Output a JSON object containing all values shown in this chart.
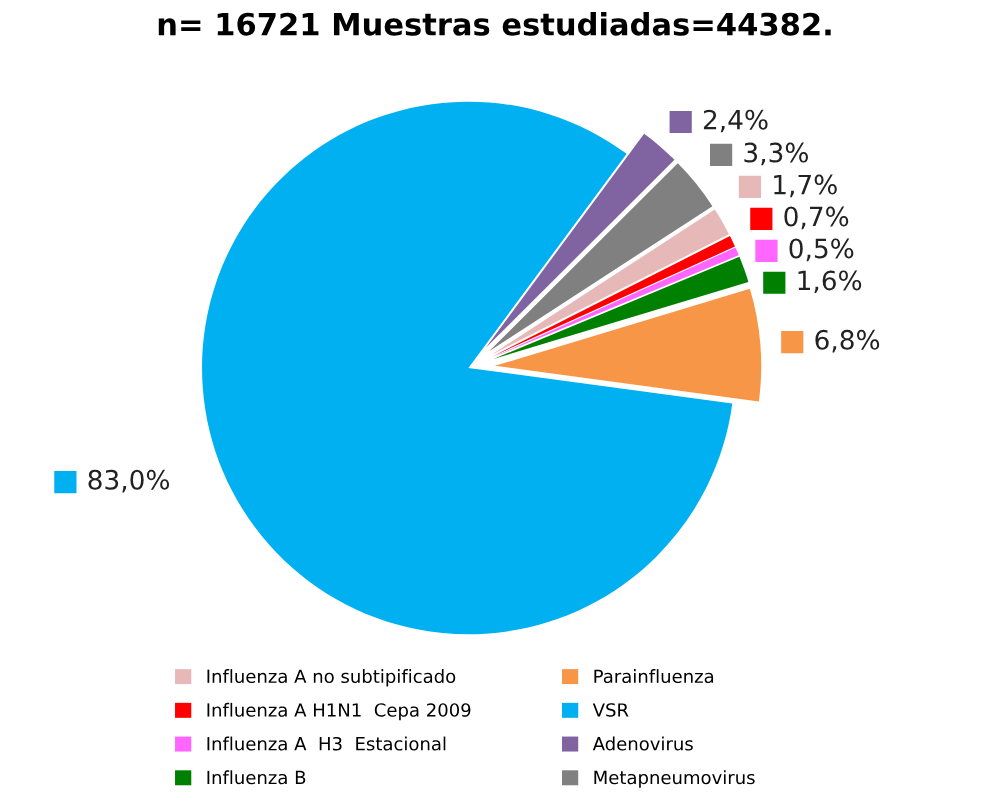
{
  "chart_data": {
    "type": "pie",
    "title": "n= 16721 Muestras estudiadas=44382.",
    "categories": [
      "Influenza A no subtipificado",
      "Influenza A H1N1  Cepa 2009",
      "Influenza A  H3  Estacional",
      "Influenza B",
      "Parainfluenza",
      "VSR",
      "Adenovirus",
      "Metapneumovirus"
    ],
    "values": [
      1.7,
      0.7,
      0.5,
      1.6,
      6.8,
      83.0,
      2.4,
      3.3
    ],
    "value_labels": [
      "1,7%",
      "0,7%",
      "0,5%",
      "1,6%",
      "6,8%",
      "83,0%",
      "2,4%",
      "3,3%"
    ],
    "colors": [
      "#e6b9b8",
      "#ff0000",
      "#ff66ff",
      "#008000",
      "#f79646",
      "#00b0f0",
      "#8064a2",
      "#808080"
    ],
    "legend": "bottom"
  }
}
